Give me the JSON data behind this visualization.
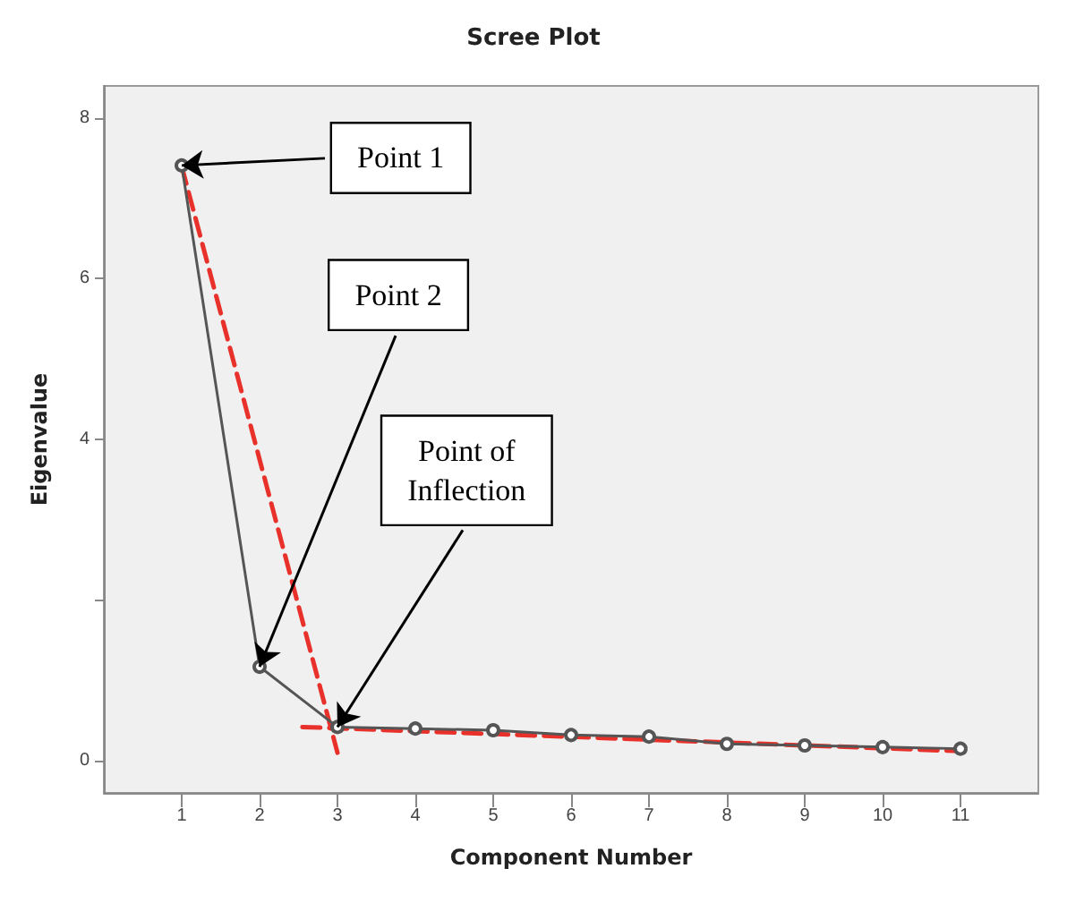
{
  "chart_data": {
    "type": "line",
    "title": "Scree Plot",
    "xlabel": "Component Number",
    "ylabel": "Eigenvalue",
    "x": [
      1,
      2,
      3,
      4,
      5,
      6,
      7,
      8,
      9,
      10,
      11
    ],
    "series": [
      {
        "color": "#555555",
        "values": [
          7.41,
          1.17,
          0.42,
          0.4,
          0.38,
          0.32,
          0.3,
          0.21,
          0.19,
          0.17,
          0.15
        ],
        "marker": "circle",
        "line_style": "solid"
      },
      {
        "type": "line",
        "color": "#e8312a",
        "x": [
          1,
          3
        ],
        "values": [
          7.4,
          0.1
        ],
        "marker": "none",
        "line_style": "dashed"
      },
      {
        "type": "line",
        "color": "#e8312a",
        "x": [
          2.55,
          11
        ],
        "values": [
          0.42,
          0.12
        ],
        "marker": "none",
        "line_style": "dashed"
      }
    ],
    "xlim": [
      0,
      12
    ],
    "xticks": [
      1,
      2,
      3,
      4,
      5,
      6,
      7,
      8,
      9,
      10,
      11
    ],
    "ylim": [
      -0.4,
      8.4
    ],
    "yticks": [
      0,
      {
        "value": 2,
        "label": null
      },
      4,
      6,
      8
    ],
    "annotations": [
      {
        "text": "Point 1",
        "x": 1,
        "y": 7.41
      },
      {
        "text": "Point 2",
        "x": 2,
        "y": 1.17
      },
      {
        "text": "Point of Inflection",
        "x": 3,
        "y": 0.42
      }
    ]
  }
}
